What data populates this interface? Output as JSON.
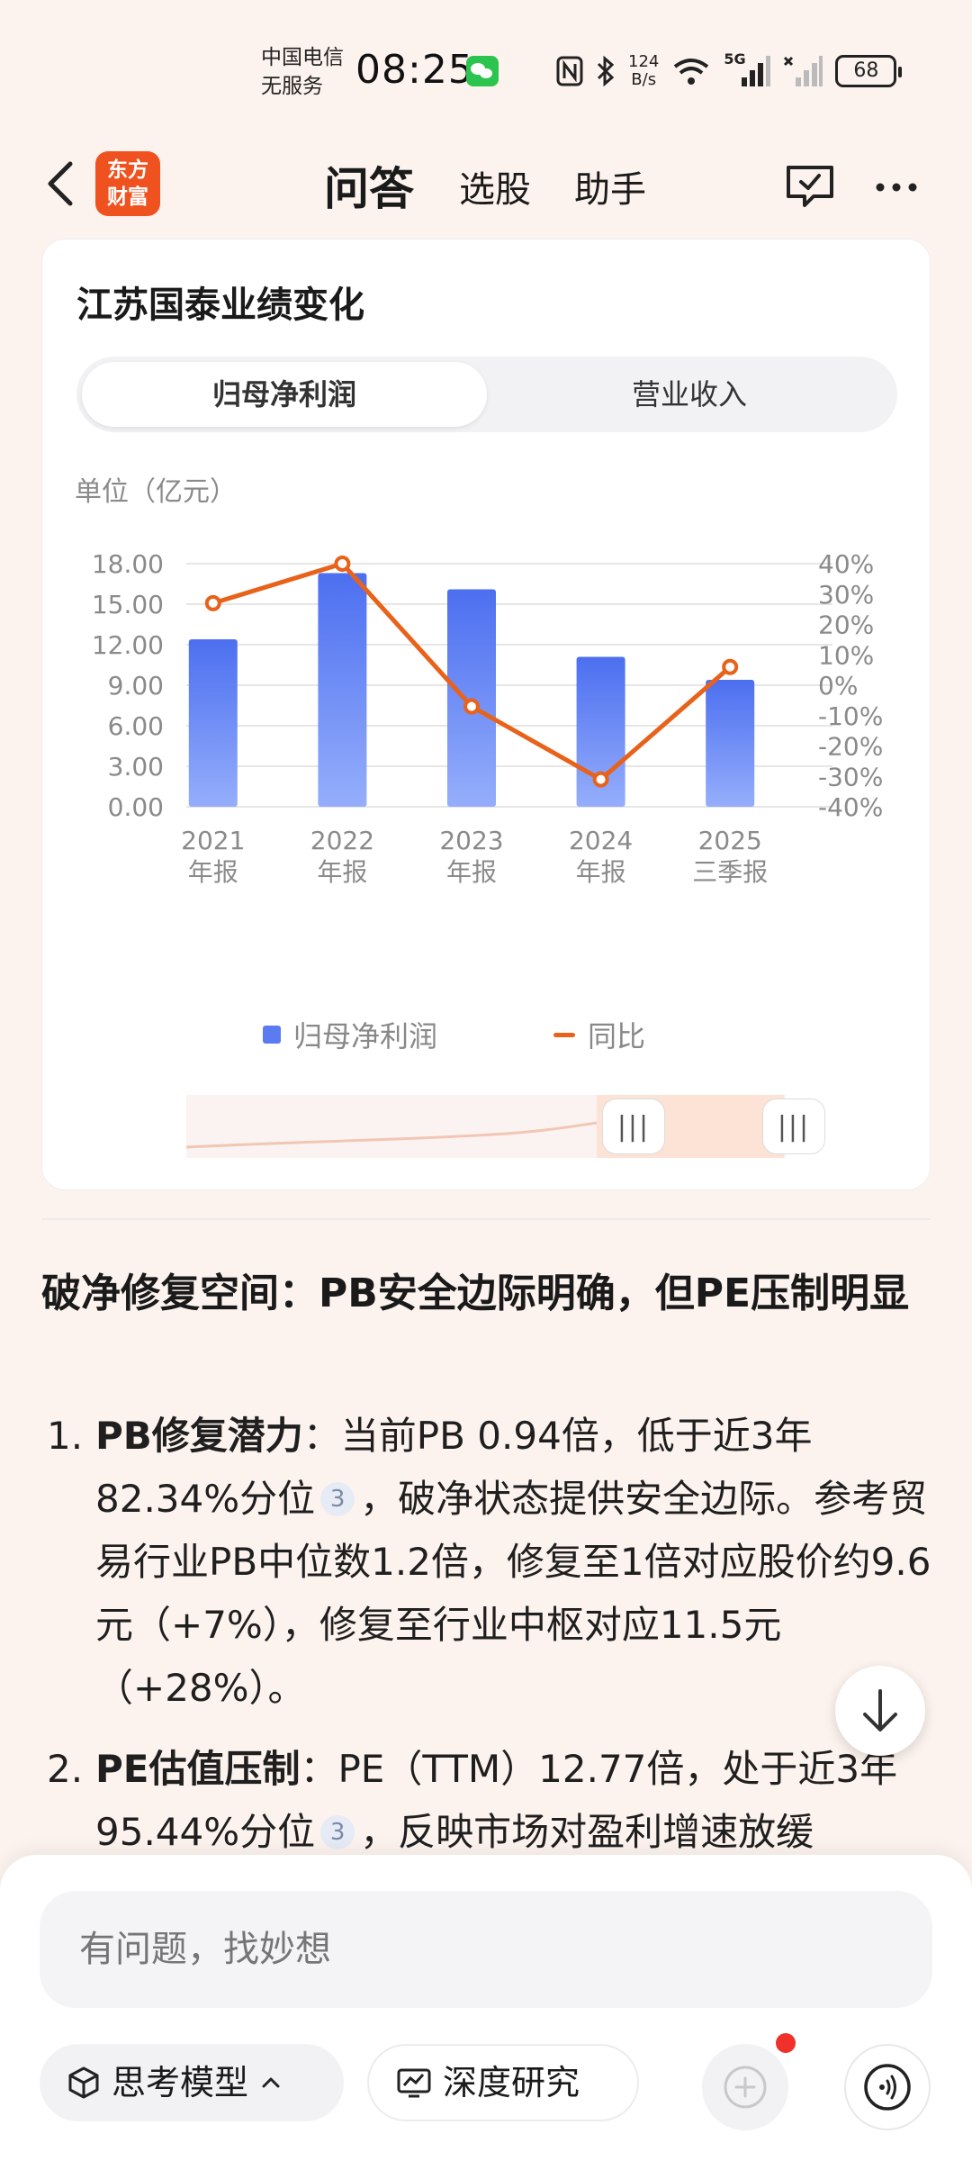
{
  "status_bar": {
    "carrier_line1": "中国电信",
    "carrier_line2": "无服务",
    "time": "08:25",
    "net_speed_value": "124",
    "net_speed_unit": "B/s",
    "signal_label": "5G",
    "battery": "68"
  },
  "nav": {
    "logo_line1": "东方",
    "logo_line2": "财富",
    "tabs": [
      {
        "label": "问答",
        "active": true
      },
      {
        "label": "选股",
        "active": false
      },
      {
        "label": "助手",
        "active": false
      }
    ]
  },
  "chart_card": {
    "title": "江苏国泰业绩变化",
    "segments": [
      "归母净利润",
      "营业收入"
    ],
    "active_segment": "归母净利润",
    "unit_label": "单位（亿元）"
  },
  "chart_data": {
    "type": "bar",
    "categories": [
      [
        "2021",
        "年报"
      ],
      [
        "2022",
        "年报"
      ],
      [
        "2023",
        "年报"
      ],
      [
        "2024",
        "年报"
      ],
      [
        "2025",
        "三季报"
      ]
    ],
    "series": [
      {
        "name": "归母净利润",
        "type": "bar",
        "axis": "left",
        "values": [
          12.4,
          17.3,
          16.1,
          11.1,
          9.4
        ],
        "color": "#5b7cf0"
      },
      {
        "name": "同比",
        "type": "line",
        "axis": "right",
        "values": [
          27,
          40,
          -7,
          -31,
          6
        ],
        "color": "#e8621a"
      }
    ],
    "y_left": {
      "min": 0,
      "max": 18,
      "ticks": [
        "18.00",
        "15.00",
        "12.00",
        "9.00",
        "6.00",
        "3.00",
        "0.00"
      ]
    },
    "y_right": {
      "min": -40,
      "max": 40,
      "ticks": [
        "40%",
        "30%",
        "20%",
        "10%",
        "0%",
        "-10%",
        "-20%",
        "-30%",
        "-40%"
      ]
    },
    "grid": true,
    "legend": "bottom"
  },
  "answer": {
    "heading": "破净修复空间：PB安全边际明确，但PE压制明显",
    "items": [
      {
        "num": "1.",
        "bold": "PB修复潜力",
        "text_before_cite": "：当前PB 0.94倍，低于近3年82.34%分位",
        "cite": "3",
        "text_after_cite": "，破净状态提供安全边际。参考贸易行业PB中位数1.2倍，修复至1倍对应股价约9.6元（+7%），修复至行业中枢对应11.5元（+28%）。"
      },
      {
        "num": "2.",
        "bold": "PE估值压制",
        "text_before_cite": "：PE（TTM）12.77倍，处于近3年95.44%分位",
        "cite": "3",
        "text_after_cite": "，反映市场对盈利增速放缓"
      }
    ]
  },
  "bottom_bar": {
    "input_placeholder": "有问题，找妙想",
    "model_label": "思考模型",
    "deep_research_label": "深度研究"
  }
}
